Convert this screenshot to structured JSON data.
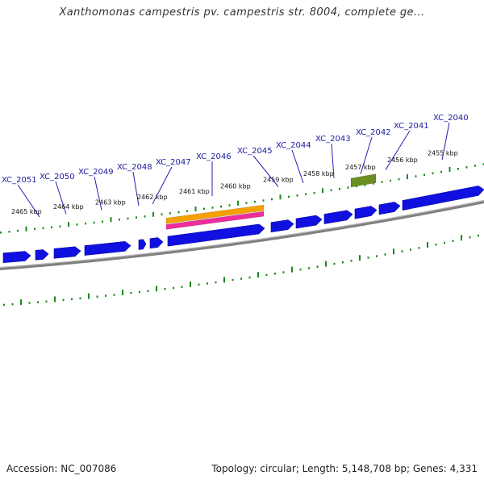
{
  "title": "Xanthomonas campestris pv. campestris str. 8004, complete ge...",
  "footer": {
    "accession": "Accession: NC_007086",
    "summary": "Topology: circular; Length: 5,148,708 bp; Genes: 4,331"
  },
  "colors": {
    "cds": "#1010e0",
    "backbone": "#808080",
    "gc_ticks": "#1b8a1b",
    "feature_orange": "#f5a000",
    "feature_pink": "#ee2d9c",
    "feature_olive": "#6b8e23",
    "gene_label": "#1a1aa0"
  },
  "scale_ticks": [
    {
      "label": "2465 kbp",
      "kbp": 2465
    },
    {
      "label": "2464 kbp",
      "kbp": 2464
    },
    {
      "label": "2463 kbp",
      "kbp": 2463
    },
    {
      "label": "2462 kbp",
      "kbp": 2462
    },
    {
      "label": "2461 kbp",
      "kbp": 2461
    },
    {
      "label": "2460 kbp",
      "kbp": 2460
    },
    {
      "label": "2459 kbp",
      "kbp": 2459
    },
    {
      "label": "2458 kbp",
      "kbp": 2458
    },
    {
      "label": "2457 kbp",
      "kbp": 2457
    },
    {
      "label": "2456 kbp",
      "kbp": 2456
    },
    {
      "label": "2455 kbp",
      "kbp": 2455
    }
  ],
  "gene_labels": [
    {
      "label": "XC_2051"
    },
    {
      "label": "XC_2050"
    },
    {
      "label": "XC_2049"
    },
    {
      "label": "XC_2048"
    },
    {
      "label": "XC_2047"
    },
    {
      "label": "XC_2046"
    },
    {
      "label": "XC_2045"
    },
    {
      "label": "XC_2044"
    },
    {
      "label": "XC_2043"
    },
    {
      "label": "XC_2042"
    },
    {
      "label": "XC_2041"
    },
    {
      "label": "XC_2040"
    }
  ]
}
